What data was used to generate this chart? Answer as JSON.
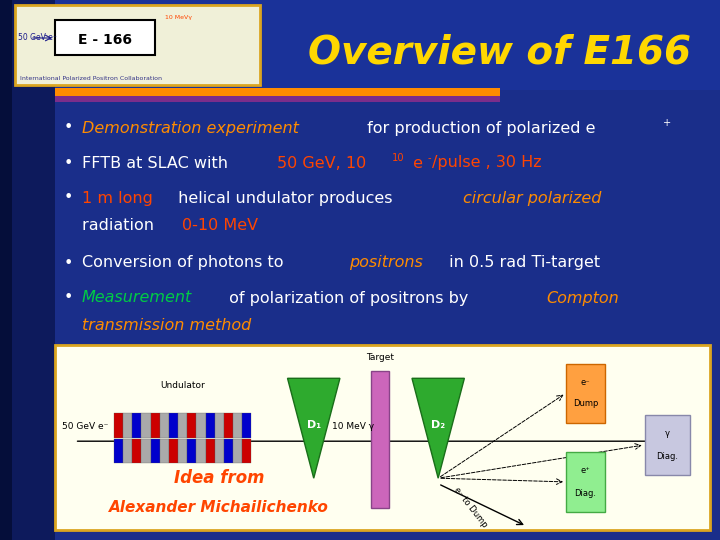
{
  "title": "Overview of E166",
  "title_color": "#FFD700",
  "title_fontsize": 28,
  "bg_color": "#1a2e8a",
  "left_strip_color": "#0d1a5c",
  "sep_color1": "#FF8C00",
  "sep_color2": "#7B2D8B",
  "logo_bg": "#f0f0d8",
  "logo_border": "#DAA520",
  "diagram_bg": "#FFFFF0",
  "diagram_border": "#DAA520",
  "idea_color": "#FF4500",
  "idea_line1": "Idea from",
  "idea_line2": "Alexander Michailichenko",
  "bullet_white": "#FFFFFF",
  "bullet_orange": "#FF8C00",
  "bullet_red": "#FF4500",
  "bullet_green": "#00CC44",
  "undulator_colors": [
    "#CC0000",
    "#AAAAAA",
    "#0000CC",
    "#AAAAAA",
    "#CC0000",
    "#AAAAAA",
    "#0000CC",
    "#AAAAAA",
    "#CC0000",
    "#AAAAAA",
    "#0000CC",
    "#AAAAAA",
    "#CC0000",
    "#AAAAAA",
    "#0000CC"
  ],
  "undulator_colors2": [
    "#0000CC",
    "#AAAAAA",
    "#CC0000",
    "#AAAAAA",
    "#0000CC",
    "#AAAAAA",
    "#CC0000",
    "#AAAAAA",
    "#0000CC",
    "#AAAAAA",
    "#CC0000",
    "#AAAAAA",
    "#0000CC",
    "#AAAAAA",
    "#CC0000"
  ]
}
